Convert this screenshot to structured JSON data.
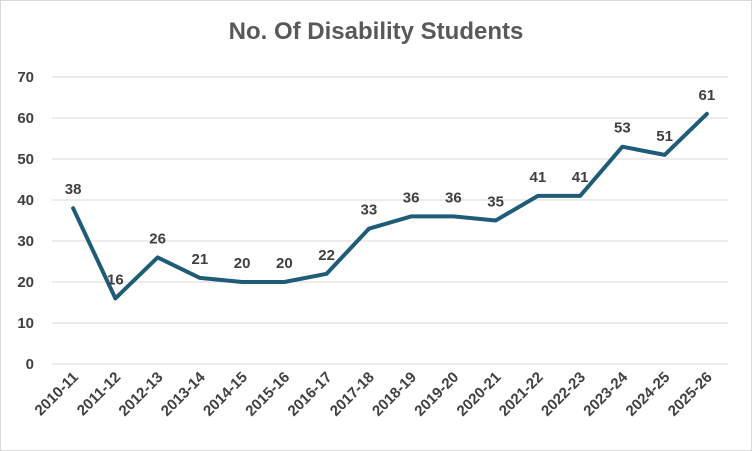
{
  "chart_data": {
    "type": "line",
    "title": "No. Of Disability Students",
    "categories": [
      "2010-11",
      "2011-12",
      "2012-13",
      "2013-14",
      "2014-15",
      "2015-16",
      "2016-17",
      "2017-18",
      "2018-19",
      "2019-20",
      "2020-21",
      "2021-22",
      "2022-23",
      "2023-24",
      "2024-25",
      "2025-26"
    ],
    "series": [
      {
        "values": [
          38,
          16,
          26,
          21,
          20,
          20,
          22,
          33,
          36,
          36,
          35,
          41,
          41,
          53,
          51,
          61
        ]
      }
    ],
    "ylim": [
      0,
      70
    ],
    "yticks": [
      0,
      10,
      20,
      30,
      40,
      50,
      60,
      70
    ],
    "grid": true,
    "data_labels": true,
    "color": "#1f5c78"
  }
}
